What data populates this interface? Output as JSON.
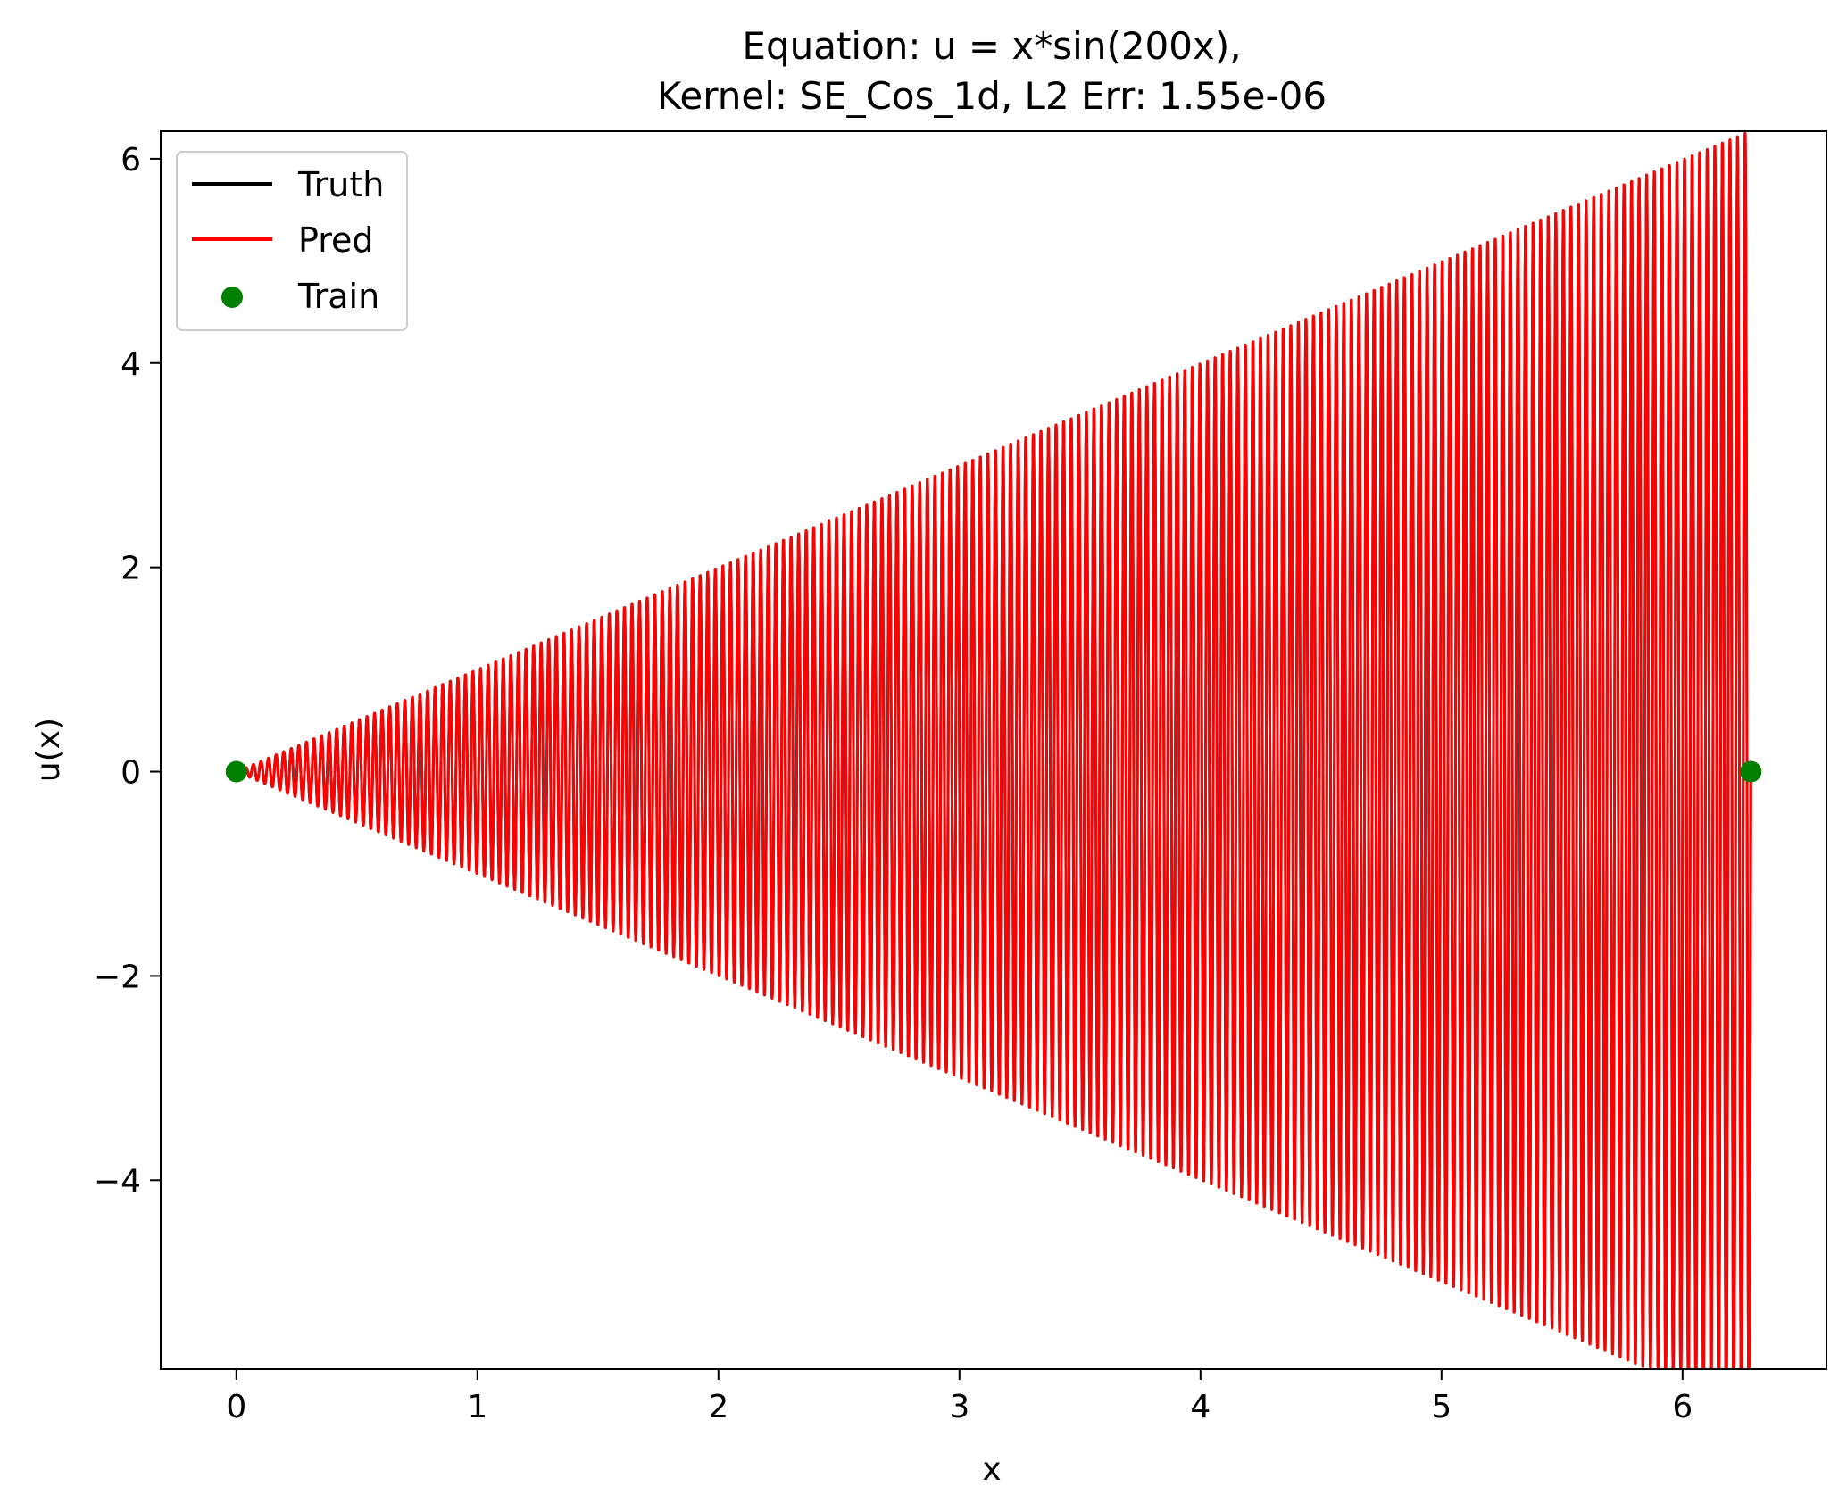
{
  "chart_data": {
    "type": "line",
    "title_line1": "Equation: u = x*sin(200x),",
    "title_line2": "Kernel: SE_Cos_1d,   L2 Err: 1.55e-06",
    "xlabel": "x",
    "ylabel": "u(x)",
    "xlim": [
      -0.314,
      6.597
    ],
    "ylim": [
      -5.85,
      6.27
    ],
    "xticks": [
      0,
      1,
      2,
      3,
      4,
      5,
      6
    ],
    "xtick_labels": [
      "0",
      "1",
      "2",
      "3",
      "4",
      "5",
      "6"
    ],
    "yticks": [
      -4,
      -2,
      0,
      2,
      4,
      6
    ],
    "ytick_labels": [
      "−4",
      "−2",
      "0",
      "2",
      "4",
      "6"
    ],
    "grid": false,
    "legend_position": "top-left",
    "series": [
      {
        "name": "Truth",
        "kind": "line",
        "color": "#000000",
        "function": "x*sin(200x)",
        "x_range": [
          0,
          6.2832
        ],
        "samples": 10000
      },
      {
        "name": "Pred",
        "kind": "line",
        "color": "#ff0000",
        "function": "x*sin(200x)",
        "x_range": [
          0,
          6.2832
        ],
        "samples": 10000
      },
      {
        "name": "Train",
        "kind": "scatter",
        "color": "#008000",
        "points": [
          [
            0,
            0
          ],
          [
            6.2832,
            0
          ]
        ]
      }
    ]
  }
}
